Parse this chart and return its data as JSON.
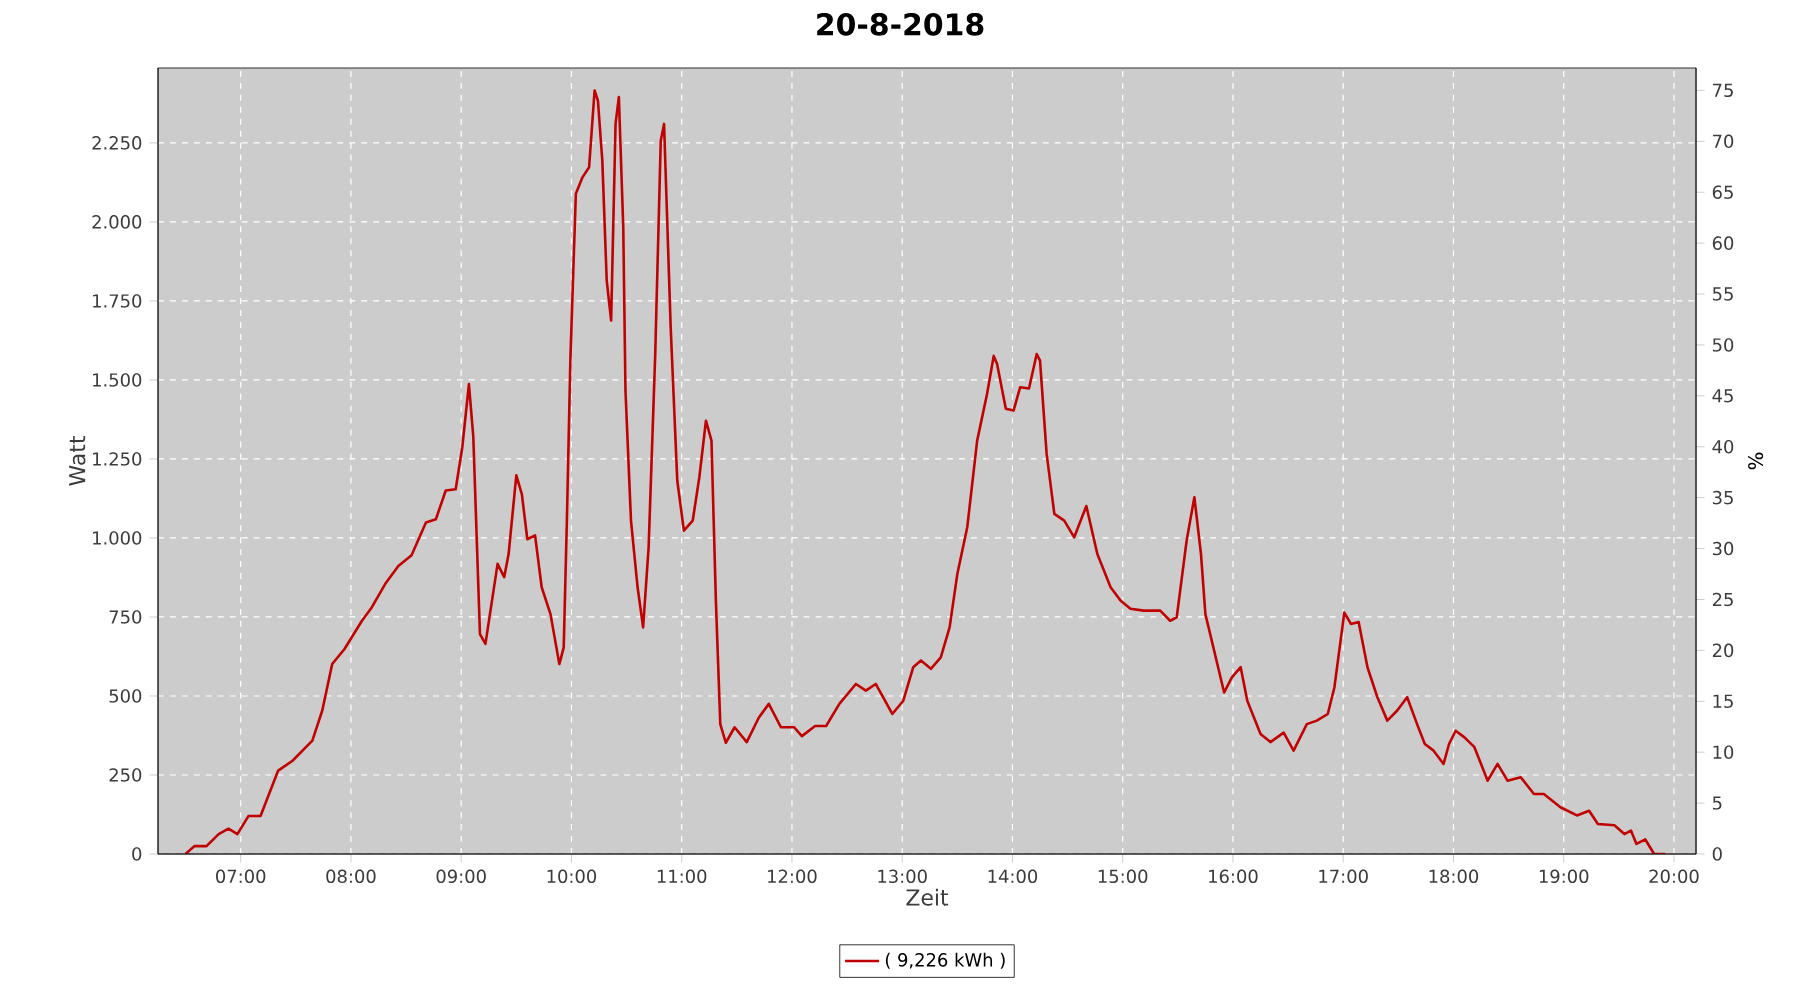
{
  "chart_data": {
    "type": "line",
    "title": "20-8-2018",
    "xlabel": "Zeit",
    "ylabel": "Watt",
    "y2label": "%",
    "xlim": [
      6.25,
      20.2
    ],
    "xticks": [
      {
        "value": 7,
        "label": "07:00"
      },
      {
        "value": 8,
        "label": "08:00"
      },
      {
        "value": 9,
        "label": "09:00"
      },
      {
        "value": 10,
        "label": "10:00"
      },
      {
        "value": 11,
        "label": "11:00"
      },
      {
        "value": 12,
        "label": "12:00"
      },
      {
        "value": 13,
        "label": "13:00"
      },
      {
        "value": 14,
        "label": "14:00"
      },
      {
        "value": 15,
        "label": "15:00"
      },
      {
        "value": 16,
        "label": "16:00"
      },
      {
        "value": 17,
        "label": "17:00"
      },
      {
        "value": 18,
        "label": "18:00"
      },
      {
        "value": 19,
        "label": "19:00"
      },
      {
        "value": 20,
        "label": "20:00"
      }
    ],
    "ylim": [
      0,
      2487
    ],
    "yticks": [
      0,
      250,
      500,
      750,
      {
        "value": 1000,
        "label": "1.000"
      },
      {
        "value": 1250,
        "label": "1.250"
      },
      {
        "value": 1500,
        "label": "1.500"
      },
      {
        "value": 1750,
        "label": "1.750"
      },
      {
        "value": 2000,
        "label": "2.000"
      },
      {
        "value": 2250,
        "label": "2.250"
      }
    ],
    "y2lim": [
      0,
      77.2
    ],
    "y2ticks": [
      0,
      5,
      10,
      15,
      20,
      25,
      30,
      35,
      40,
      45,
      50,
      55,
      60,
      65,
      70,
      75
    ],
    "grid": true,
    "legend": "bottom",
    "marker": "none",
    "line_style": "solid",
    "series": [
      {
        "name": "( 9,226 kWh )",
        "color": "#c00000",
        "x": [
          6.5,
          6.58,
          6.69,
          6.8,
          6.89,
          6.97,
          7.07,
          7.18,
          7.34,
          7.47,
          7.65,
          7.74,
          7.83,
          7.94,
          8.1,
          8.19,
          8.31,
          8.43,
          8.55,
          8.68,
          8.77,
          8.86,
          8.95,
          9.01,
          9.07,
          9.11,
          9.17,
          9.22,
          9.33,
          9.39,
          9.43,
          9.5,
          9.55,
          9.6,
          9.67,
          9.73,
          9.81,
          9.89,
          9.93,
          9.96,
          9.99,
          10.04,
          10.1,
          10.16,
          10.21,
          10.24,
          10.28,
          10.32,
          10.36,
          10.4,
          10.43,
          10.47,
          10.49,
          10.54,
          10.6,
          10.65,
          10.7,
          10.76,
          10.81,
          10.84,
          10.9,
          10.96,
          11.02,
          11.1,
          11.16,
          11.22,
          11.27,
          11.31,
          11.35,
          11.4,
          11.48,
          11.59,
          11.7,
          11.79,
          11.9,
          12.02,
          12.09,
          12.21,
          12.31,
          12.43,
          12.58,
          12.67,
          12.76,
          12.91,
          13.01,
          13.1,
          13.17,
          13.26,
          13.35,
          13.43,
          13.5,
          13.59,
          13.68,
          13.77,
          13.83,
          13.86,
          13.94,
          14.01,
          14.07,
          14.15,
          14.22,
          14.25,
          14.31,
          14.38,
          14.47,
          14.56,
          14.67,
          14.77,
          14.89,
          14.98,
          15.07,
          15.19,
          15.34,
          15.43,
          15.49,
          15.58,
          15.65,
          15.71,
          15.75,
          15.92,
          15.99,
          16.07,
          16.13,
          16.25,
          16.34,
          16.46,
          16.55,
          16.67,
          16.76,
          16.86,
          16.92,
          17.01,
          17.07,
          17.14,
          17.22,
          17.31,
          17.4,
          17.49,
          17.58,
          17.67,
          17.74,
          17.82,
          17.91,
          17.96,
          18.02,
          18.1,
          18.19,
          18.31,
          18.4,
          18.49,
          18.61,
          18.73,
          18.82,
          18.97,
          19.12,
          19.23,
          19.31,
          19.46,
          19.55,
          19.61,
          19.66,
          19.74,
          19.82,
          19.92
        ],
        "values": [
          0,
          25,
          25,
          63,
          80,
          63,
          120,
          120,
          264,
          295,
          359,
          454,
          601,
          648,
          738,
          781,
          854,
          911,
          945,
          1049,
          1059,
          1150,
          1154,
          1287,
          1487,
          1319,
          696,
          665,
          918,
          876,
          949,
          1198,
          1139,
          996,
          1008,
          844,
          759,
          601,
          654,
          1076,
          1561,
          2089,
          2141,
          2173,
          2416,
          2384,
          2194,
          1814,
          1688,
          2310,
          2395,
          1983,
          1466,
          1055,
          844,
          717,
          970,
          1582,
          2257,
          2310,
          1667,
          1181,
          1023,
          1055,
          1192,
          1371,
          1308,
          802,
          411,
          352,
          401,
          354,
          432,
          475,
          401,
          401,
          373,
          405,
          405,
          475,
          538,
          517,
          538,
          443,
          485,
          591,
          612,
          586,
          622,
          717,
          886,
          1034,
          1308,
          1456,
          1576,
          1551,
          1409,
          1403,
          1477,
          1473,
          1582,
          1561,
          1266,
          1076,
          1055,
          1002,
          1101,
          949,
          844,
          802,
          776,
          770,
          770,
          738,
          749,
          992,
          1129,
          949,
          759,
          511,
          559,
          591,
          485,
          380,
          354,
          384,
          327,
          411,
          422,
          443,
          527,
          764,
          728,
          734,
          591,
          496,
          422,
          454,
          496,
          411,
          348,
          327,
          285,
          348,
          390,
          369,
          338,
          232,
          285,
          232,
          243,
          190,
          190,
          148,
          122,
          137,
          95,
          91,
          63,
          74,
          32,
          46,
          0,
          0
        ]
      }
    ]
  }
}
